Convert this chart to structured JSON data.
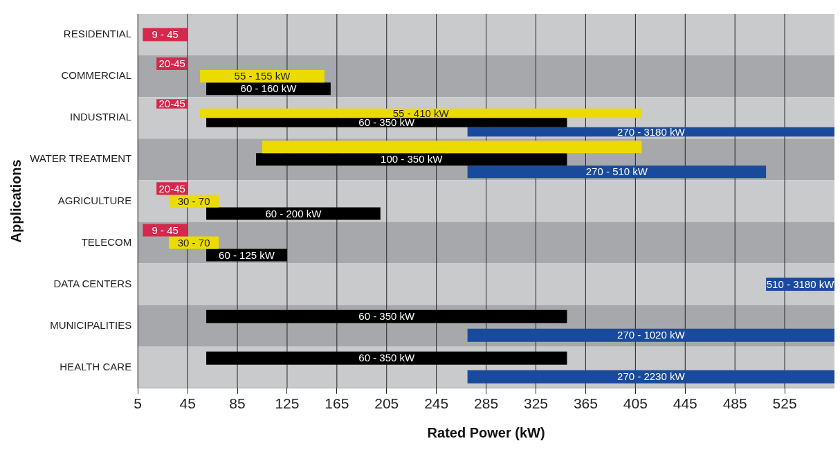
{
  "chart_data": {
    "type": "bar",
    "orientation": "horizontal",
    "categories": [
      "RESIDENTIAL",
      "COMMERCIAL",
      "INDUSTRIAL",
      "WATER TREATMENT",
      "AGRICULTURE",
      "TELECOM",
      "DATA CENTERS",
      "MUNICIPALITIES",
      "HEALTH CARE"
    ],
    "series": [
      {
        "color": "#d4284c",
        "base": [
          9,
          20,
          20,
          null,
          20,
          9,
          null,
          null,
          null
        ],
        "values": [
          36,
          25,
          25,
          null,
          25,
          36,
          null,
          null,
          null
        ]
      },
      {
        "color": "#ecdb00",
        "base": [
          null,
          55,
          55,
          105,
          30,
          30,
          null,
          null,
          null
        ],
        "values": [
          null,
          100,
          355,
          305,
          40,
          40,
          null,
          null,
          null
        ]
      },
      {
        "color": "#000000",
        "base": [
          null,
          60,
          60,
          100,
          60,
          60,
          null,
          60,
          60
        ],
        "values": [
          null,
          100,
          290,
          250,
          140,
          65,
          null,
          290,
          290
        ]
      },
      {
        "color": "#1a4a9c",
        "base": [
          null,
          null,
          270,
          270,
          null,
          null,
          510,
          270,
          270
        ],
        "values": [
          null,
          null,
          2910,
          240,
          null,
          null,
          2670,
          750,
          1960
        ]
      }
    ],
    "annotations": [
      "9 - 45",
      "20-45",
      "55 - 155 kW",
      "60 - 160 kW",
      "20-45",
      "55 - 410 kW",
      "60 - 350 kW",
      "270 - 3180 kW",
      null,
      "100 - 350 kW",
      "270 - 510 kW",
      "20-45",
      "30 - 70",
      "60 - 200 kW",
      "9 - 45",
      "30 - 70",
      "60 - 125 kW",
      "510 - 3180 kW",
      "60 - 350 kW",
      "270 - 1020 kW",
      "60 - 350 kW",
      "270 - 2230 kW"
    ],
    "xlim": [
      5,
      565
    ],
    "xticks": [
      5,
      45,
      85,
      125,
      165,
      205,
      245,
      285,
      325,
      365,
      405,
      445,
      485,
      525
    ],
    "xlabel": "Rated Power (kW)",
    "ylabel": "Applications",
    "grid": "x",
    "legend": false
  }
}
